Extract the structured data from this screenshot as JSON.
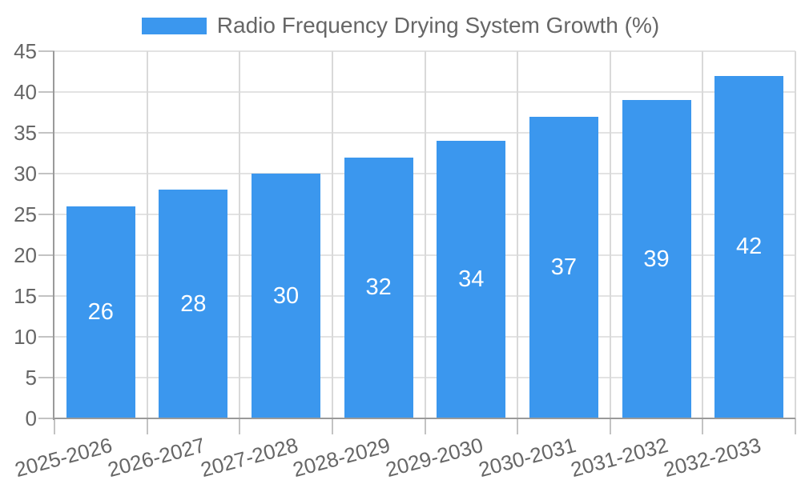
{
  "legend": {
    "series_label": "Radio Frequency Drying System Growth (%)"
  },
  "chart_data": {
    "type": "bar",
    "title": "",
    "series_name": "Radio Frequency Drying System Growth (%)",
    "categories": [
      "2025-2026",
      "2026-2027",
      "2027-2028",
      "2028-2029",
      "2029-2030",
      "2030-2031",
      "2031-2032",
      "2032-2033"
    ],
    "values": [
      26,
      28,
      30,
      32,
      34,
      37,
      39,
      42
    ],
    "xlabel": "",
    "ylabel": "",
    "ylim": [
      0,
      45
    ],
    "ytick_step": 5,
    "ytick_labels": [
      "0",
      "5",
      "10",
      "15",
      "20",
      "25",
      "30",
      "35",
      "40",
      "45"
    ],
    "grid": true,
    "legend_position": "top",
    "value_labels": "inside-center",
    "x_label_rotation_deg": -15,
    "colors": {
      "bar": "#3b97ee",
      "axis": "#9a9a9a",
      "grid_horizontal": "#e3e3e3",
      "grid_vertical": "#d9d9d9",
      "tick": "#c3c3c3",
      "text": "#666666",
      "value_label": "#ffffff",
      "background": "#ffffff"
    }
  }
}
